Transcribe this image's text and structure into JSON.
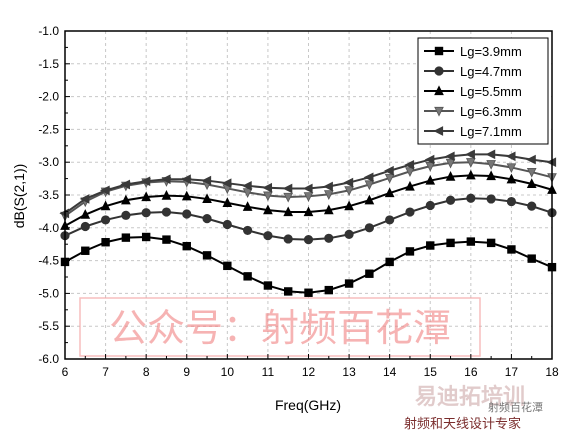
{
  "chart_data": {
    "type": "line",
    "title": "",
    "xlabel": "Freq(GHz)",
    "ylabel": "dB(S(2,1))",
    "xlim": [
      6,
      18
    ],
    "ylim": [
      -6.0,
      -1.0
    ],
    "xticks": [
      "6",
      "7",
      "8",
      "9",
      "10",
      "11",
      "12",
      "13",
      "14",
      "15",
      "16",
      "17",
      "18"
    ],
    "yticks": [
      "-1.0",
      "-1.5",
      "-2.0",
      "-2.5",
      "-3.0",
      "-3.5",
      "-4.0",
      "-4.5",
      "-5.0",
      "-5.5",
      "-6.0"
    ],
    "grid": true,
    "legend_position": "top-right",
    "x": [
      6.0,
      6.5,
      7.0,
      7.5,
      8.0,
      8.5,
      9.0,
      9.5,
      10.0,
      10.5,
      11.0,
      11.5,
      12.0,
      12.5,
      13.0,
      13.5,
      14.0,
      14.5,
      15.0,
      15.5,
      16.0,
      16.5,
      17.0,
      17.5,
      18.0
    ],
    "series": [
      {
        "name": "Lg=3.9mm",
        "marker": "square",
        "values": [
          -4.52,
          -4.35,
          -4.22,
          -4.15,
          -4.14,
          -4.18,
          -4.28,
          -4.42,
          -4.58,
          -4.74,
          -4.88,
          -4.97,
          -4.99,
          -4.95,
          -4.85,
          -4.7,
          -4.52,
          -4.36,
          -4.27,
          -4.23,
          -4.21,
          -4.23,
          -4.33,
          -4.47,
          -4.6
        ]
      },
      {
        "name": "Lg=4.7mm",
        "marker": "circle",
        "values": [
          -4.12,
          -3.98,
          -3.88,
          -3.81,
          -3.77,
          -3.76,
          -3.79,
          -3.86,
          -3.95,
          -4.04,
          -4.12,
          -4.17,
          -4.18,
          -4.16,
          -4.1,
          -4.0,
          -3.88,
          -3.76,
          -3.66,
          -3.58,
          -3.55,
          -3.56,
          -3.6,
          -3.67,
          -3.77
        ]
      },
      {
        "name": "Lg=5.5mm",
        "marker": "triangle-up",
        "values": [
          -3.97,
          -3.8,
          -3.67,
          -3.58,
          -3.53,
          -3.51,
          -3.52,
          -3.56,
          -3.62,
          -3.68,
          -3.73,
          -3.76,
          -3.76,
          -3.73,
          -3.67,
          -3.58,
          -3.47,
          -3.37,
          -3.28,
          -3.22,
          -3.2,
          -3.21,
          -3.26,
          -3.33,
          -3.42
        ]
      },
      {
        "name": "Lg=6.3mm",
        "marker": "triangle-down",
        "values": [
          -3.82,
          -3.6,
          -3.45,
          -3.36,
          -3.31,
          -3.29,
          -3.3,
          -3.34,
          -3.4,
          -3.46,
          -3.51,
          -3.53,
          -3.52,
          -3.49,
          -3.43,
          -3.34,
          -3.24,
          -3.14,
          -3.06,
          -3.01,
          -3.0,
          -3.03,
          -3.08,
          -3.15,
          -3.23
        ]
      },
      {
        "name": "Lg=7.1mm",
        "marker": "triangle-left",
        "values": [
          -3.78,
          -3.56,
          -3.43,
          -3.34,
          -3.29,
          -3.26,
          -3.26,
          -3.28,
          -3.32,
          -3.36,
          -3.39,
          -3.4,
          -3.4,
          -3.37,
          -3.31,
          -3.23,
          -3.13,
          -3.04,
          -2.96,
          -2.91,
          -2.88,
          -2.88,
          -2.91,
          -2.96,
          -3.0
        ]
      }
    ]
  },
  "watermark": {
    "text": "公众号：射频百花潭"
  },
  "logo": {
    "main": "易迪拓培训",
    "caption": "射频和天线设计专家",
    "small": "射频百花潭"
  }
}
